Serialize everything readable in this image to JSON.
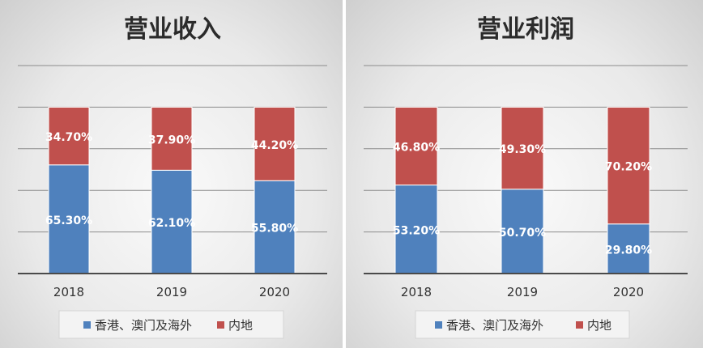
{
  "colors": {
    "hk": "#4f81bd",
    "mainland": "#c0504d",
    "grid": "#8c8c8c",
    "axis": "#4a4a4a",
    "label": "#ffffff"
  },
  "chart_data": [
    {
      "type": "bar",
      "stacked": "percent",
      "title": "营业收入",
      "categories": [
        "2018",
        "2019",
        "2020"
      ],
      "series": [
        {
          "name": "香港、澳门及海外",
          "values": [
            65.3,
            62.1,
            55.8
          ],
          "labels": [
            "65.30%",
            "62.10%",
            "55.80%"
          ]
        },
        {
          "name": "内地",
          "values": [
            34.7,
            37.9,
            44.2
          ],
          "labels": [
            "34.70%",
            "37.90%",
            "44.20%"
          ]
        }
      ],
      "ylim": [
        0,
        125
      ],
      "grid": true,
      "legend": "bottom"
    },
    {
      "type": "bar",
      "stacked": "percent",
      "title": "营业利润",
      "categories": [
        "2018",
        "2019",
        "2020"
      ],
      "series": [
        {
          "name": "香港、澳门及海外",
          "values": [
            53.2,
            50.7,
            29.8
          ],
          "labels": [
            "53.20%",
            "50.70%",
            "29.80%"
          ]
        },
        {
          "name": "内地",
          "values": [
            46.8,
            49.3,
            70.2
          ],
          "labels": [
            "46.80%",
            "49.30%",
            "70.20%"
          ]
        }
      ],
      "ylim": [
        0,
        125
      ],
      "grid": true,
      "legend": "bottom"
    }
  ]
}
